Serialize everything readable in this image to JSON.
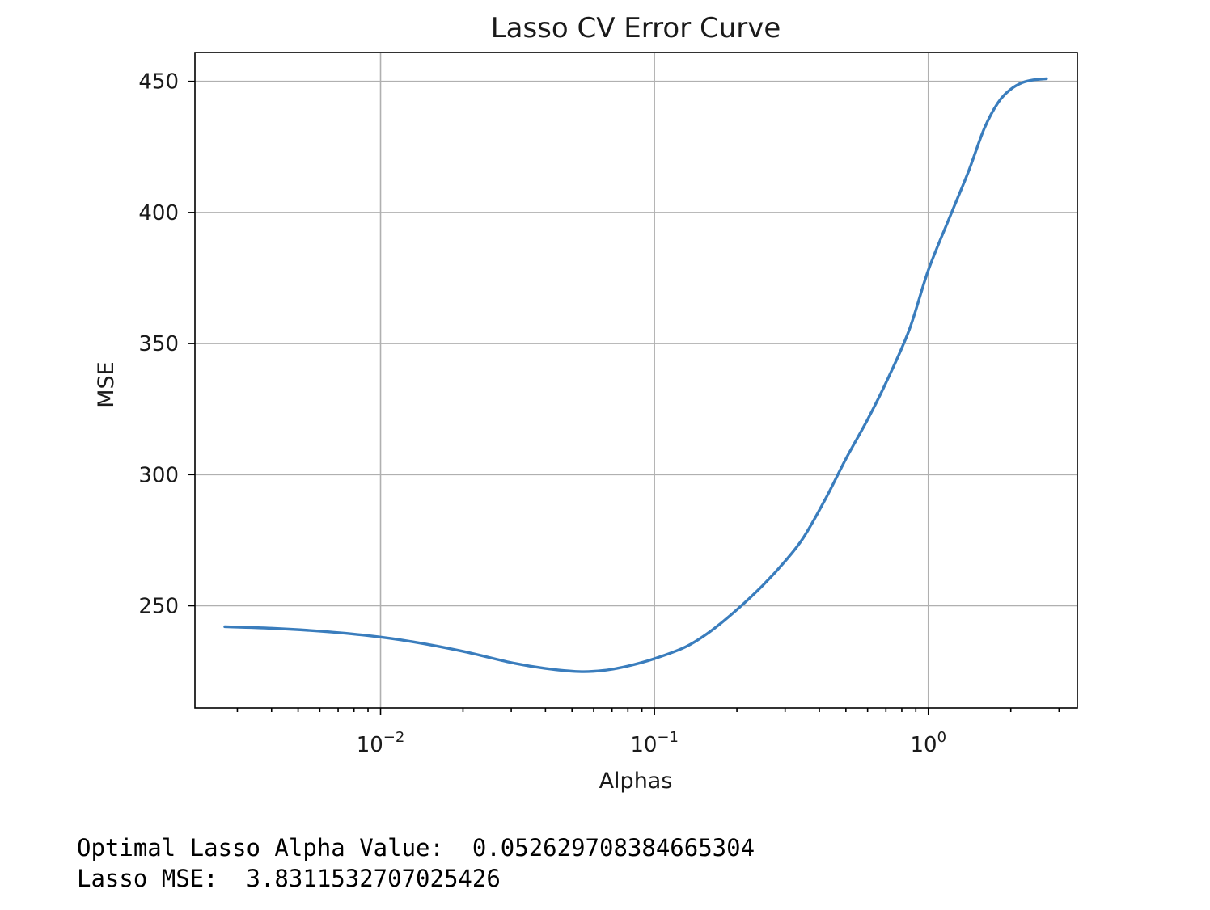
{
  "chart_data": {
    "type": "line",
    "title": "Lasso CV Error Curve",
    "xlabel": "Alphas",
    "ylabel": "MSE",
    "xscale": "log",
    "grid": true,
    "xlim": [
      0.0021,
      3.5
    ],
    "ylim": [
      211,
      461
    ],
    "xticks": [
      {
        "value": 0.01,
        "base": "10",
        "exp": "−2"
      },
      {
        "value": 0.1,
        "base": "10",
        "exp": "−1"
      },
      {
        "value": 1,
        "base": "10",
        "exp": "0"
      }
    ],
    "yticks": [
      250,
      300,
      350,
      400,
      450
    ],
    "series": [
      {
        "color": "#3a7dbd",
        "x": [
          0.0027,
          0.004,
          0.006,
          0.009,
          0.013,
          0.02,
          0.03,
          0.04,
          0.053,
          0.065,
          0.08,
          0.1,
          0.13,
          0.16,
          0.2,
          0.25,
          0.3,
          0.35,
          0.42,
          0.5,
          0.6,
          0.7,
          0.85,
          1.0,
          1.2,
          1.4,
          1.6,
          1.8,
          2.0,
          2.2,
          2.4,
          2.7
        ],
        "y": [
          242,
          241.4,
          240.3,
          238.6,
          236.3,
          232.6,
          228.3,
          226.1,
          224.9,
          225.3,
          227.0,
          229.8,
          234.3,
          240.2,
          248.5,
          258.0,
          267.0,
          276.0,
          290.5,
          306.0,
          321.0,
          335.0,
          355.0,
          378.0,
          398.5,
          415.5,
          432.0,
          442.0,
          447.0,
          449.5,
          450.5,
          451.0
        ]
      }
    ]
  },
  "output": {
    "alpha_label": "Optimal Lasso Alpha Value:  ",
    "alpha_value": "0.052629708384665304",
    "mse_label": "Lasso MSE:  ",
    "mse_value": "3.8311532707025426"
  }
}
